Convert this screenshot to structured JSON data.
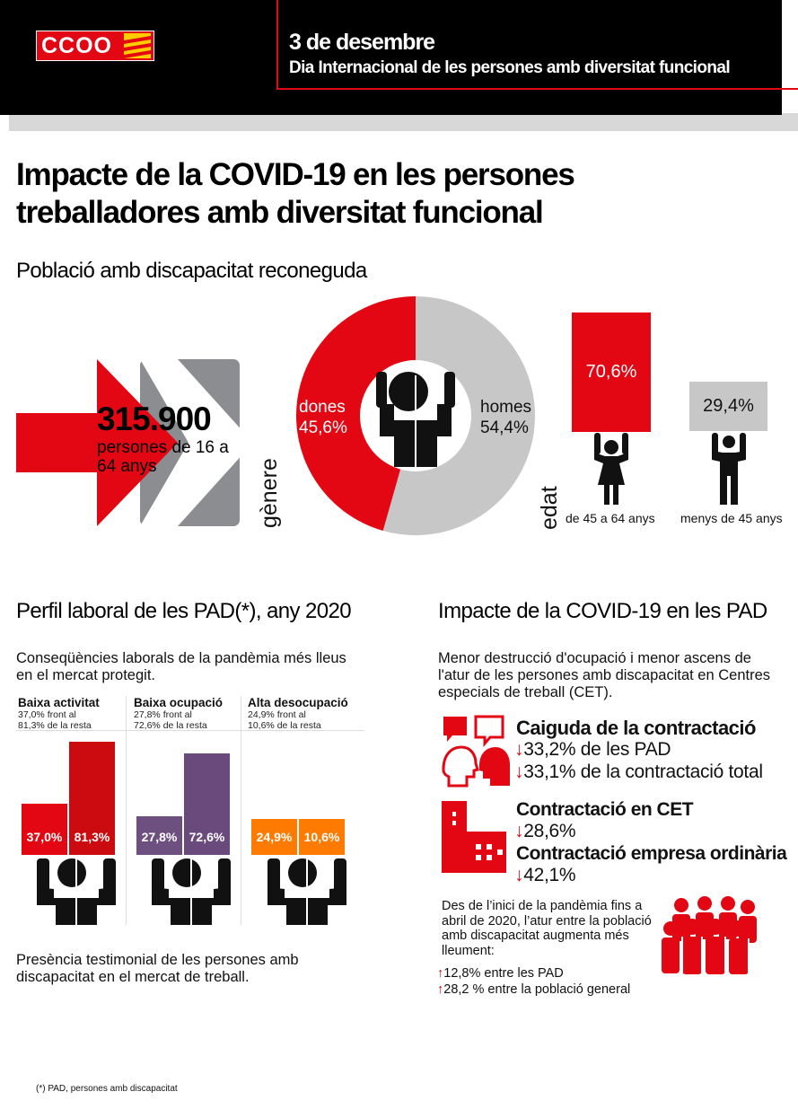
{
  "header": {
    "logo_text": "CCOO",
    "date": "3 de desembre",
    "subtitle": "Dia Internacional de les persones amb diversitat funcional"
  },
  "main_title": "Impacte de la COVID-19 en les persones treballadores amb diversitat funcional",
  "poblacio": {
    "title": "Població amb discapacitat reconeguda",
    "total": "315.900",
    "total_desc": "persones de 16 a 64 anys",
    "genere_label": "gènere",
    "edat_label": "edat",
    "dones_label": "dones",
    "dones_value": "45,6%",
    "homes_label": "homes",
    "homes_value": "54,4%",
    "dones_share": 45.6,
    "colors": {
      "dones": "#e30613",
      "homes": "#c7c7c7"
    },
    "age": [
      {
        "value": "70,6%",
        "label": "de 45 a 64 anys",
        "share": 70.6
      },
      {
        "value": "29,4%",
        "label": "menys de 45 anys",
        "share": 29.4
      }
    ]
  },
  "perfil": {
    "title": "Perfil laboral de les PAD(*), any 2020",
    "intro": "Conseqüències laborals de la pandèmia més lleus en el mercat protegit.",
    "categories": [
      {
        "title": "Baixa activitat",
        "desc1": "37,0% front al",
        "desc2": "81,3% de la resta",
        "pad_value": 37.0,
        "pad_label": "37,0%",
        "rest_value": 81.3,
        "rest_label": "81,3%",
        "colors": [
          "#e30613",
          "#cc0b10"
        ]
      },
      {
        "title": "Baixa ocupació",
        "desc1": "27,8% front al",
        "desc2": "72,6% de la resta",
        "pad_value": 27.8,
        "pad_label": "27,8%",
        "rest_value": 72.6,
        "rest_label": "72,6%",
        "colors": [
          "#6e5080",
          "#6a4a7c"
        ]
      },
      {
        "title": "Alta desocupació",
        "desc1": "24,9% front al",
        "desc2": "10,6% de la resta",
        "pad_value": 24.9,
        "pad_label": "24,9%",
        "rest_value": 10.6,
        "rest_label": "10,6%",
        "colors": [
          "#ff7a00",
          "#ff7a00"
        ]
      }
    ],
    "note": "Presència testimonial de les persones amb discapacitat en el mercat de treball."
  },
  "impacte": {
    "title": "Impacte de la COVID-19 en les PAD",
    "intro": "Menor destrucció d'ocupació i menor ascens de l'atur de les persones amb discapacitat en Centres especials de treball (CET).",
    "caiguda_title": "Caiguda de la contractació",
    "caiguda_v1": "33,2% de les PAD",
    "caiguda_v2": "33,1% de la contractació total",
    "cet_title": "Contractació en CET",
    "cet_value": "28,6%",
    "ord_title": "Contractació empresa ordinària",
    "ord_value": "42,1%",
    "atur_text": "Des de l’inici de la pandèmia fins a abril de 2020, l’atur entre la població amb discapacitat augmenta més lleument:",
    "atur_v1": "12,8% entre les PAD",
    "atur_v2": "28,2 % entre la població general",
    "down_arrow": "↓",
    "up_arrow": "↑"
  },
  "footnote": "(*) PAD, persones amb discapacitat"
}
